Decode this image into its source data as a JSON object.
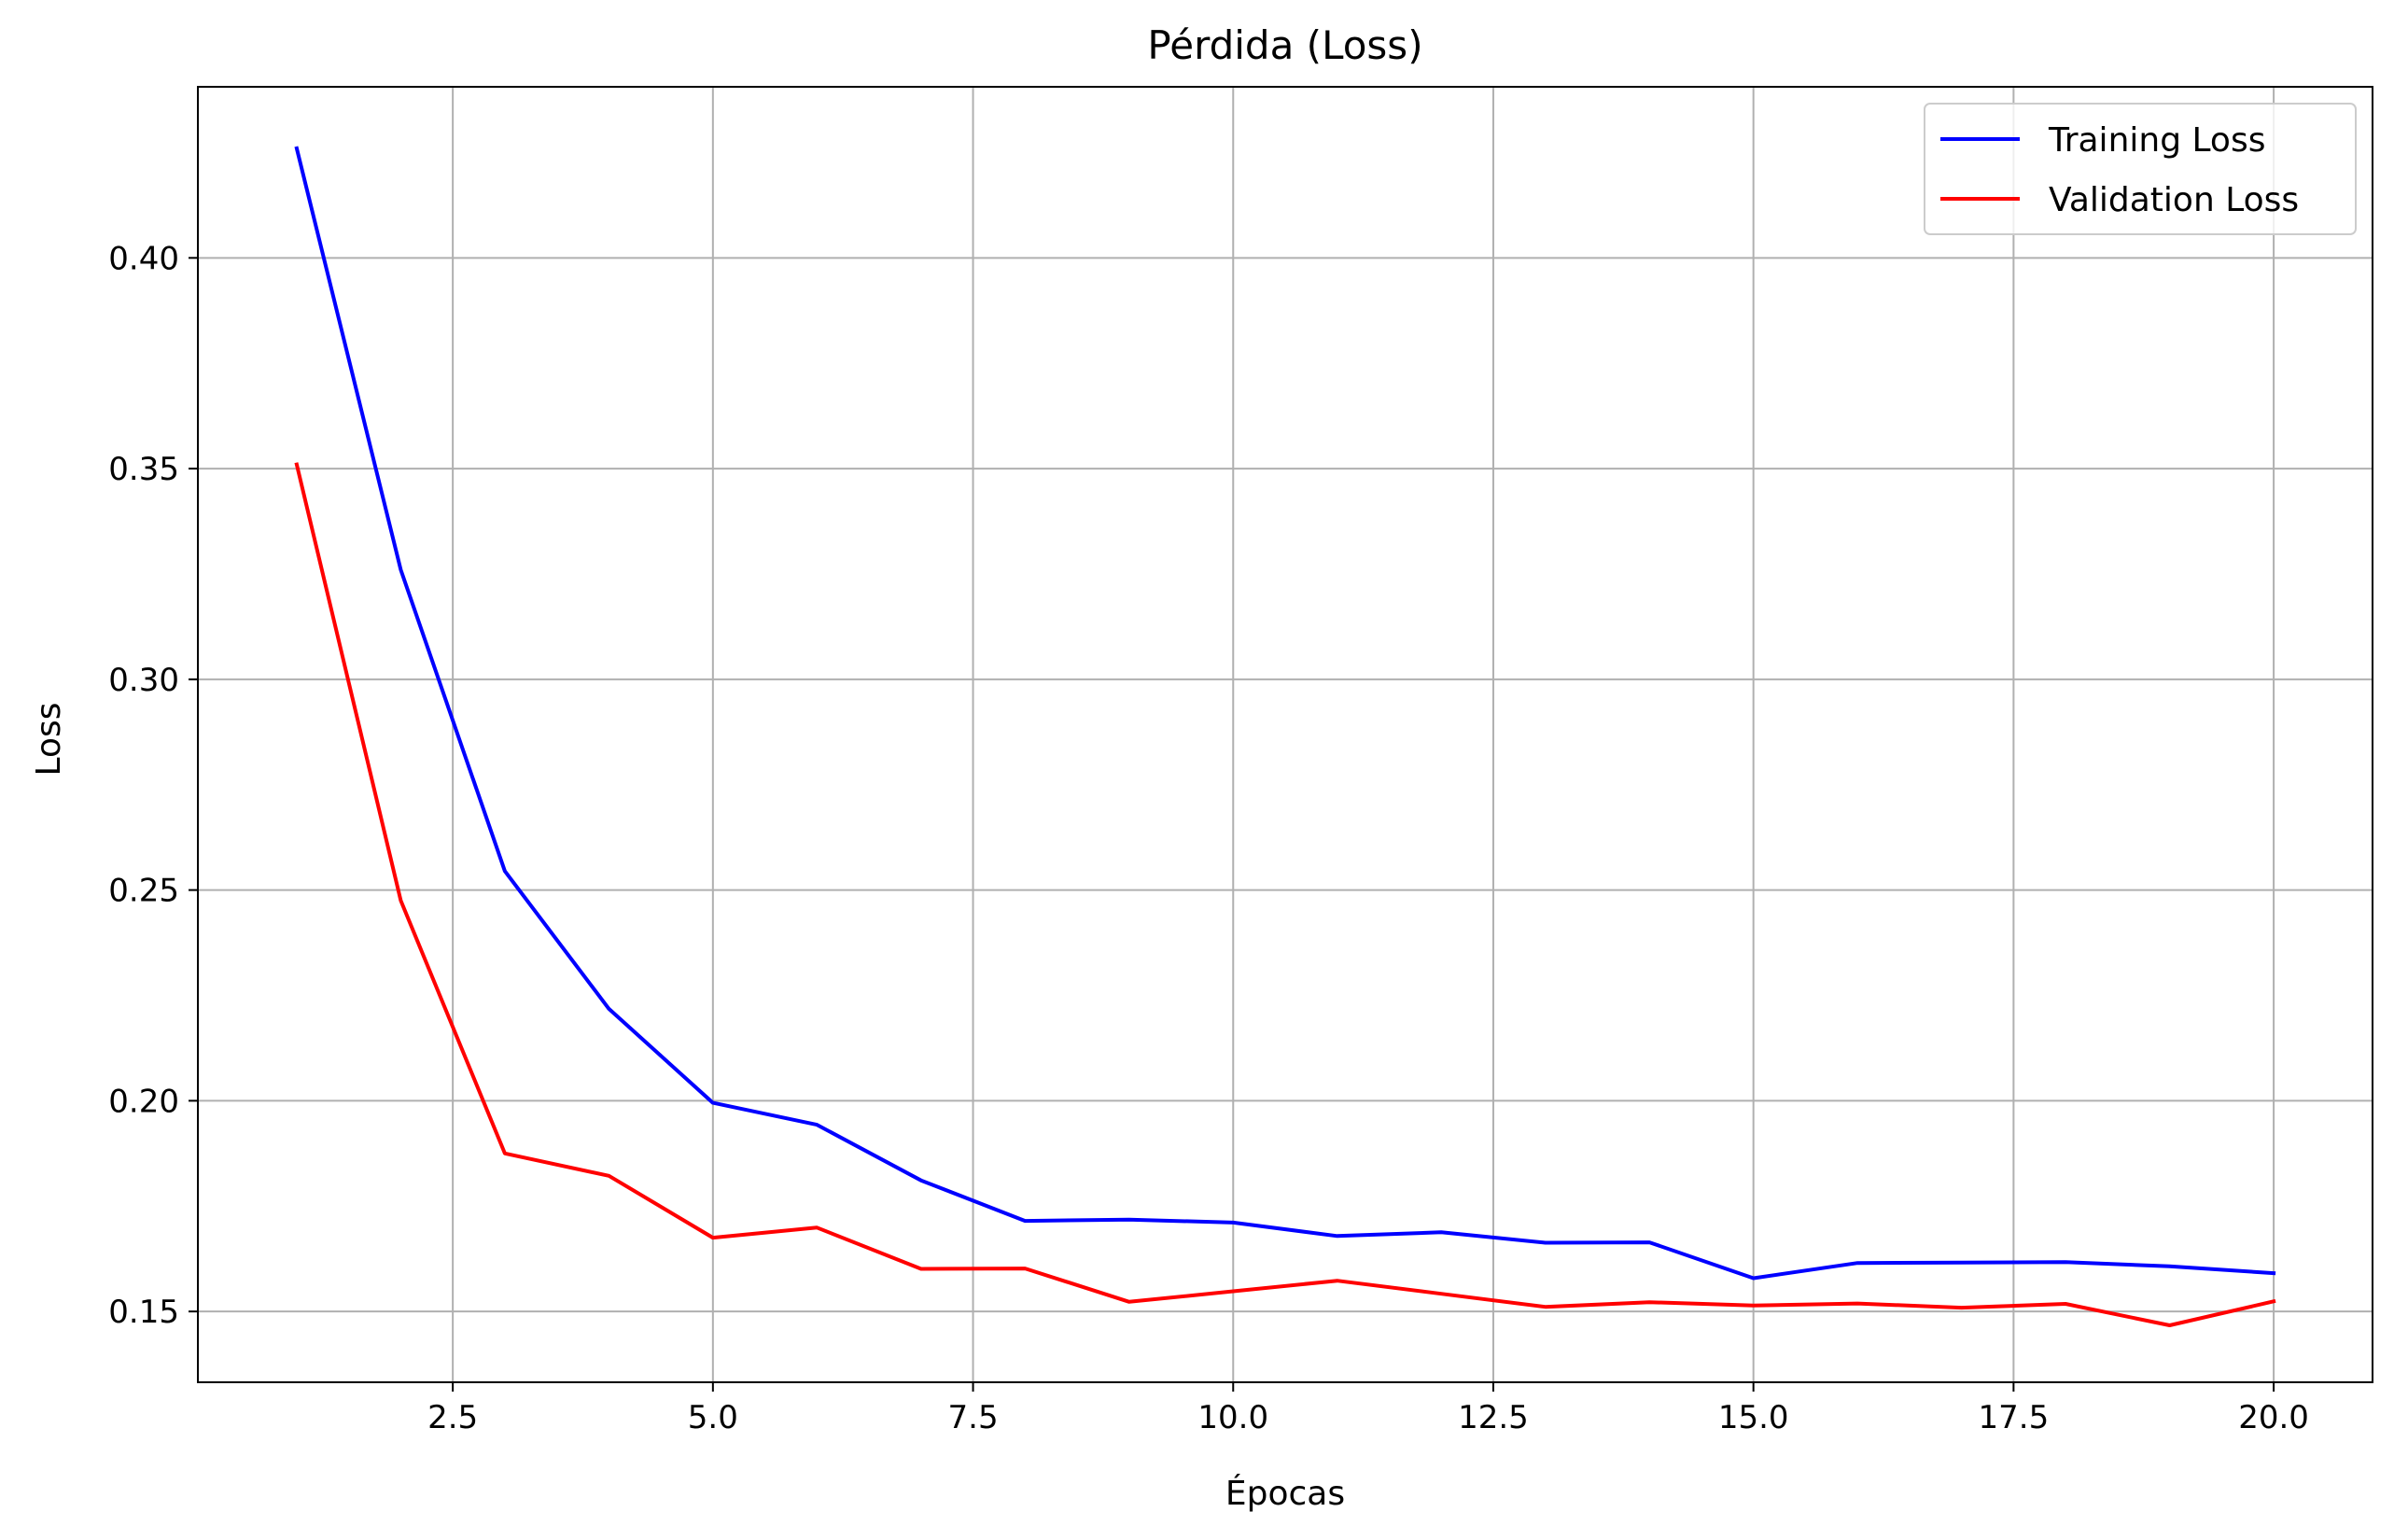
{
  "chart_data": {
    "type": "line",
    "title": "Pérdida (Loss)",
    "xlabel": "Épocas",
    "ylabel": "Loss",
    "x": [
      1,
      2,
      3,
      4,
      5,
      6,
      7,
      8,
      9,
      10,
      11,
      12,
      13,
      14,
      15,
      16,
      17,
      18,
      19,
      20
    ],
    "series": [
      {
        "name": "Training Loss",
        "color": "#0000ff",
        "values": [
          0.426,
          0.326,
          0.2545,
          0.2218,
          0.1995,
          0.1943,
          0.1811,
          0.1715,
          0.1718,
          0.1711,
          0.1679,
          0.1688,
          0.1663,
          0.1664,
          0.1579,
          0.1615,
          0.1616,
          0.1617,
          0.1607,
          0.1591
        ]
      },
      {
        "name": "Validation Loss",
        "color": "#ff0000",
        "values": [
          0.351,
          0.2475,
          0.1875,
          0.1822,
          0.1675,
          0.1699,
          0.1601,
          0.1602,
          0.1523,
          0.1548,
          0.1573,
          0.1542,
          0.1511,
          0.1522,
          0.1514,
          0.1519,
          0.1509,
          0.1518,
          0.1467,
          0.1524
        ]
      }
    ],
    "xlim": [
      0.05,
      20.95
    ],
    "ylim": [
      0.1332,
      0.4406
    ],
    "xticks": [
      2.5,
      5.0,
      7.5,
      10.0,
      12.5,
      15.0,
      17.5,
      20.0
    ],
    "xtick_labels": [
      "2.5",
      "5.0",
      "7.5",
      "10.0",
      "12.5",
      "15.0",
      "17.5",
      "20.0"
    ],
    "yticks": [
      0.15,
      0.2,
      0.25,
      0.3,
      0.35,
      0.4
    ],
    "ytick_labels": [
      "0.15",
      "0.20",
      "0.25",
      "0.30",
      "0.35",
      "0.40"
    ],
    "grid": true,
    "legend_position": "top-right",
    "grid_color": "#b0b0b0"
  }
}
